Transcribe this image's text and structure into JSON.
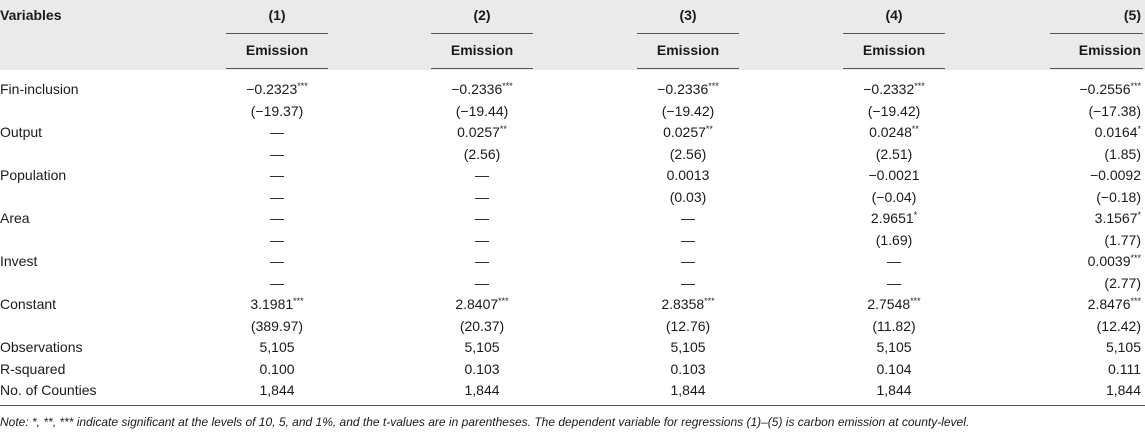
{
  "header": {
    "variables_label": "Variables",
    "columns": [
      {
        "number": "(1)",
        "dependent": "Emission"
      },
      {
        "number": "(2)",
        "dependent": "Emission"
      },
      {
        "number": "(3)",
        "dependent": "Emission"
      },
      {
        "number": "(4)",
        "dependent": "Emission"
      },
      {
        "number": "(5)",
        "dependent": "Emission"
      }
    ]
  },
  "rows": [
    {
      "label": "Fin-inclusion",
      "cells": [
        {
          "v": "−0.2323",
          "s": "***"
        },
        {
          "v": "−0.2336",
          "s": "***"
        },
        {
          "v": "−0.2336",
          "s": "***"
        },
        {
          "v": "−0.2332",
          "s": "***"
        },
        {
          "v": "−0.2556",
          "s": "***"
        }
      ]
    },
    {
      "label": "",
      "cells": [
        {
          "v": "(−19.37)",
          "s": ""
        },
        {
          "v": "(−19.44)",
          "s": ""
        },
        {
          "v": "(−19.42)",
          "s": ""
        },
        {
          "v": "(−19.42)",
          "s": ""
        },
        {
          "v": "(−17.38)",
          "s": ""
        }
      ]
    },
    {
      "label": "Output",
      "cells": [
        {
          "v": "—",
          "s": ""
        },
        {
          "v": "0.0257",
          "s": "**"
        },
        {
          "v": "0.0257",
          "s": "**"
        },
        {
          "v": "0.0248",
          "s": "**"
        },
        {
          "v": "0.0164",
          "s": "*"
        }
      ]
    },
    {
      "label": "",
      "cells": [
        {
          "v": "—",
          "s": ""
        },
        {
          "v": "(2.56)",
          "s": ""
        },
        {
          "v": "(2.56)",
          "s": ""
        },
        {
          "v": "(2.51)",
          "s": ""
        },
        {
          "v": "(1.85)",
          "s": ""
        }
      ]
    },
    {
      "label": "Population",
      "cells": [
        {
          "v": "—",
          "s": ""
        },
        {
          "v": "—",
          "s": ""
        },
        {
          "v": "0.0013",
          "s": ""
        },
        {
          "v": "−0.0021",
          "s": ""
        },
        {
          "v": "−0.0092",
          "s": ""
        }
      ]
    },
    {
      "label": "",
      "cells": [
        {
          "v": "—",
          "s": ""
        },
        {
          "v": "—",
          "s": ""
        },
        {
          "v": "(0.03)",
          "s": ""
        },
        {
          "v": "(−0.04)",
          "s": ""
        },
        {
          "v": "(−0.18)",
          "s": ""
        }
      ]
    },
    {
      "label": "Area",
      "cells": [
        {
          "v": "—",
          "s": ""
        },
        {
          "v": "—",
          "s": ""
        },
        {
          "v": "—",
          "s": ""
        },
        {
          "v": "2.9651",
          "s": "*"
        },
        {
          "v": "3.1567",
          "s": "*"
        }
      ]
    },
    {
      "label": "",
      "cells": [
        {
          "v": "—",
          "s": ""
        },
        {
          "v": "—",
          "s": ""
        },
        {
          "v": "—",
          "s": ""
        },
        {
          "v": "(1.69)",
          "s": ""
        },
        {
          "v": "(1.77)",
          "s": ""
        }
      ]
    },
    {
      "label": "Invest",
      "cells": [
        {
          "v": "—",
          "s": ""
        },
        {
          "v": "—",
          "s": ""
        },
        {
          "v": "—",
          "s": ""
        },
        {
          "v": "—",
          "s": ""
        },
        {
          "v": "0.0039",
          "s": "***"
        }
      ]
    },
    {
      "label": "",
      "cells": [
        {
          "v": "—",
          "s": ""
        },
        {
          "v": "—",
          "s": ""
        },
        {
          "v": "—",
          "s": ""
        },
        {
          "v": "—",
          "s": ""
        },
        {
          "v": "(2.77)",
          "s": ""
        }
      ]
    },
    {
      "label": "Constant",
      "cells": [
        {
          "v": "3.1981",
          "s": "***"
        },
        {
          "v": "2.8407",
          "s": "***"
        },
        {
          "v": "2.8358",
          "s": "***"
        },
        {
          "v": "2.7548",
          "s": "***"
        },
        {
          "v": "2.8476",
          "s": "***"
        }
      ]
    },
    {
      "label": "",
      "cells": [
        {
          "v": "(389.97)",
          "s": ""
        },
        {
          "v": "(20.37)",
          "s": ""
        },
        {
          "v": "(12.76)",
          "s": ""
        },
        {
          "v": "(11.82)",
          "s": ""
        },
        {
          "v": "(12.42)",
          "s": ""
        }
      ]
    },
    {
      "label": "Observations",
      "cells": [
        {
          "v": "5,105",
          "s": ""
        },
        {
          "v": "5,105",
          "s": ""
        },
        {
          "v": "5,105",
          "s": ""
        },
        {
          "v": "5,105",
          "s": ""
        },
        {
          "v": "5,105",
          "s": ""
        }
      ]
    },
    {
      "label": "R-squared",
      "cells": [
        {
          "v": "0.100",
          "s": ""
        },
        {
          "v": "0.103",
          "s": ""
        },
        {
          "v": "0.103",
          "s": ""
        },
        {
          "v": "0.104",
          "s": ""
        },
        {
          "v": "0.111",
          "s": ""
        }
      ]
    },
    {
      "label": "No. of Counties",
      "cells": [
        {
          "v": "1,844",
          "s": ""
        },
        {
          "v": "1,844",
          "s": ""
        },
        {
          "v": "1,844",
          "s": ""
        },
        {
          "v": "1,844",
          "s": ""
        },
        {
          "v": "1,844",
          "s": ""
        }
      ]
    }
  ],
  "note": "Note: *, **, *** indicate significant at the levels of 10, 5, and 1%, and the t-values are in parentheses. The dependent variable for regressions (1)–(5) is carbon emission at county-level."
}
